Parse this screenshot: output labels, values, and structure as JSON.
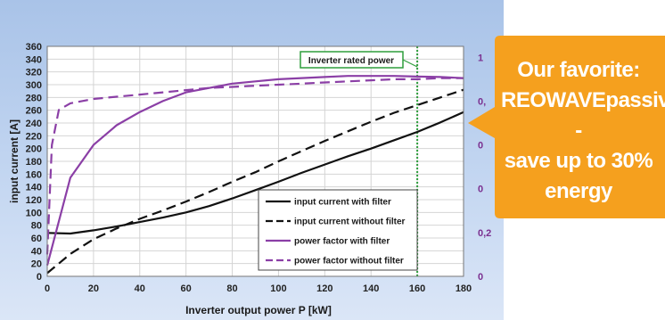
{
  "chart_data": {
    "type": "line",
    "xlabel": "Inverter output power P [kW]",
    "ylabel": "input current [A]",
    "xlim": [
      0,
      180
    ],
    "ylim": [
      0,
      360
    ],
    "y2lim": [
      0,
      1.05
    ],
    "x_ticks": [
      "0",
      "20",
      "40",
      "60",
      "80",
      "100",
      "120",
      "140",
      "160",
      "180"
    ],
    "y_ticks": [
      "0",
      "20",
      "40",
      "60",
      "80",
      "100",
      "120",
      "140",
      "160",
      "180",
      "200",
      "220",
      "240",
      "260",
      "280",
      "300",
      "320",
      "340",
      "360"
    ],
    "y2_ticks": [
      {
        "value": 0,
        "label": "0"
      },
      {
        "value": 0.2,
        "label": "0,2"
      },
      {
        "value": 0.4,
        "label": "0"
      },
      {
        "value": 0.6,
        "label": "0"
      },
      {
        "value": 0.8,
        "label": "0,"
      },
      {
        "value": 1.0,
        "label": "1"
      }
    ],
    "grid": true,
    "legend_position": "bottom-right",
    "annotation": {
      "text": "Inverter rated power",
      "x": 160
    },
    "series": [
      {
        "name": "input current with filter",
        "axis": "left",
        "color": "#111111",
        "dash": "solid",
        "x": [
          0,
          10,
          20,
          30,
          40,
          50,
          60,
          70,
          80,
          90,
          100,
          110,
          120,
          130,
          140,
          150,
          160,
          170,
          180
        ],
        "y": [
          68,
          67,
          72,
          78,
          85,
          92,
          100,
          110,
          122,
          135,
          148,
          162,
          175,
          188,
          200,
          213,
          226,
          241,
          257
        ]
      },
      {
        "name": "input current without filter",
        "axis": "left",
        "color": "#111111",
        "dash": "dashed",
        "x": [
          0,
          10,
          20,
          30,
          40,
          50,
          60,
          70,
          80,
          90,
          100,
          110,
          120,
          130,
          140,
          150,
          160,
          170,
          180
        ],
        "y": [
          5,
          35,
          58,
          75,
          90,
          103,
          117,
          132,
          148,
          163,
          180,
          196,
          212,
          227,
          242,
          256,
          268,
          280,
          292
        ]
      },
      {
        "name": "power factor with filter",
        "axis": "right",
        "color": "#8b3fa6",
        "dash": "solid",
        "x": [
          0,
          10,
          20,
          30,
          40,
          50,
          60,
          70,
          80,
          90,
          100,
          110,
          120,
          130,
          140,
          150,
          160,
          170,
          180
        ],
        "y": [
          0.05,
          0.45,
          0.6,
          0.69,
          0.75,
          0.8,
          0.84,
          0.86,
          0.88,
          0.89,
          0.9,
          0.905,
          0.91,
          0.915,
          0.915,
          0.915,
          0.912,
          0.91,
          0.905
        ]
      },
      {
        "name": "power factor without filter",
        "axis": "right",
        "color": "#8b3fa6",
        "dash": "dashed",
        "x": [
          0,
          2,
          5,
          10,
          20,
          30,
          40,
          50,
          60,
          70,
          80,
          90,
          100,
          110,
          120,
          130,
          140,
          150,
          160,
          170,
          180
        ],
        "y": [
          0.1,
          0.6,
          0.76,
          0.79,
          0.81,
          0.82,
          0.83,
          0.84,
          0.85,
          0.86,
          0.865,
          0.87,
          0.875,
          0.88,
          0.885,
          0.89,
          0.895,
          0.9,
          0.9,
          0.905,
          0.905
        ]
      }
    ]
  },
  "callout": {
    "lines": [
      "Our favorite:",
      "REOWAVEpassive -",
      "save up to 30%",
      "energy"
    ],
    "color": "#f5a01e"
  }
}
